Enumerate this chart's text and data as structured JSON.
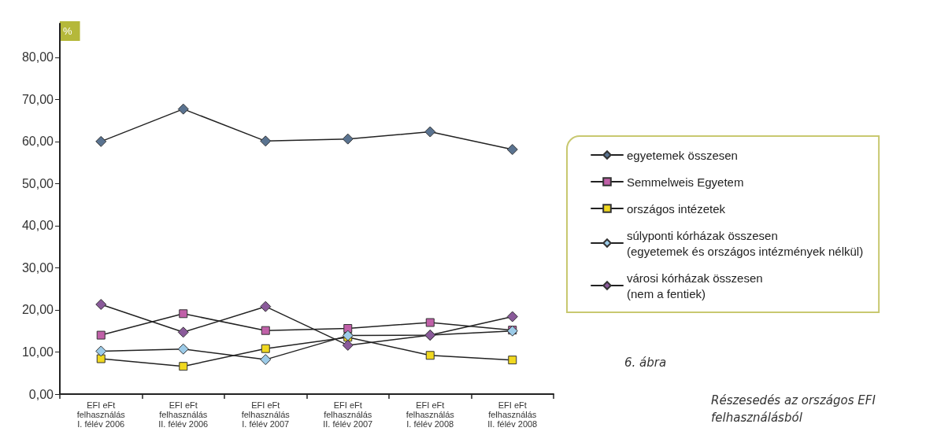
{
  "chart_data": {
    "type": "line",
    "title": "6. ábra",
    "subtitle": "Részesedés az országos EFI felhasználásból",
    "ylabel": "%",
    "categories": [
      "EFI eFt\nfelhasználás\nI. félév 2006",
      "EFI eFt\nfelhasználás\nII. félév 2006",
      "EFI eFt\nfelhasználás\nI. félév 2007",
      "EFI eFt\nfelhasználás\nII. félév 2007",
      "EFI eFt\nfelhasználás\nI. félév 2008",
      "EFI eFt\nfelhasználás\nII. félév 2008"
    ],
    "series": [
      {
        "name": "egyetemek összesen",
        "color": "#5a7390",
        "marker": "diamond",
        "values": [
          60.0,
          67.7,
          60.1,
          60.6,
          62.3,
          58.1
        ]
      },
      {
        "name": "Semmelweis Egyetem",
        "color": "#c060a8",
        "marker": "square",
        "values": [
          14.0,
          19.1,
          15.1,
          15.6,
          17.0,
          15.2
        ]
      },
      {
        "name": "országos intézetek",
        "color": "#f0d820",
        "marker": "square",
        "values": [
          8.4,
          6.6,
          10.8,
          13.5,
          9.2,
          8.1
        ]
      },
      {
        "name": "súlyponti kórházak összesen\n(egyetemek és országos intézmények nélkül)",
        "color": "#9ccbe8",
        "marker": "diamond",
        "values": [
          10.2,
          10.7,
          8.2,
          13.9,
          14.0,
          15.0
        ]
      },
      {
        "name": "városi kórházak összesen\n(nem a fentiek)",
        "color": "#8a5a9a",
        "marker": "diamond",
        "values": [
          21.3,
          14.7,
          20.8,
          11.6,
          14.0,
          18.4
        ]
      }
    ],
    "ylim": [
      0,
      88
    ],
    "yticks": [
      {
        "value": 0,
        "label": "0,00"
      },
      {
        "value": 10,
        "label": "10,00"
      },
      {
        "value": 20,
        "label": "20,00"
      },
      {
        "value": 30,
        "label": "30,00"
      },
      {
        "value": 40,
        "label": "40,00"
      },
      {
        "value": 50,
        "label": "50,00"
      },
      {
        "value": 60,
        "label": "60,00"
      },
      {
        "value": 70,
        "label": "70,00"
      },
      {
        "value": 80,
        "label": "80,00"
      }
    ],
    "grid": false,
    "legend": "right",
    "line_style": "solid"
  }
}
